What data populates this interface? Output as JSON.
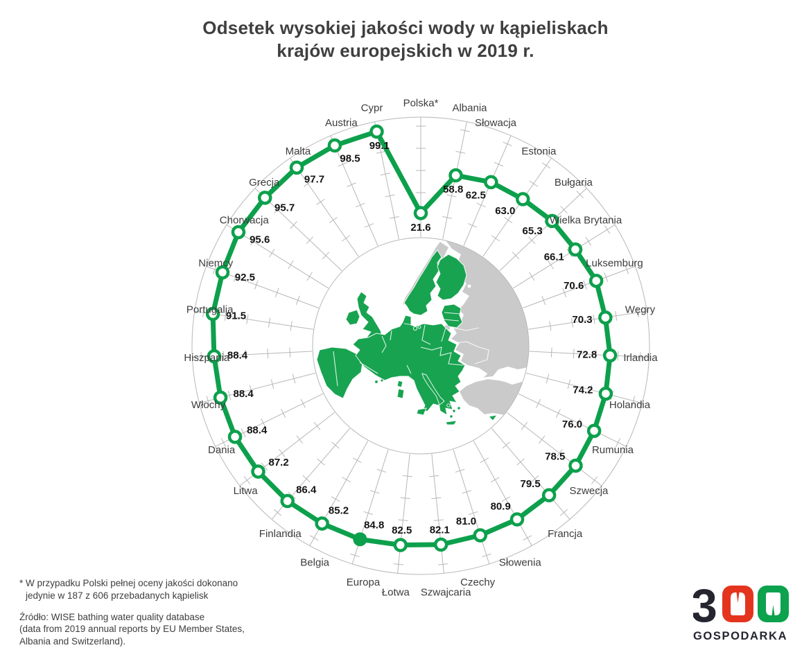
{
  "title": {
    "line1": "Odsetek wysokiej jakości wody w kąpieliskach",
    "line2": "krajów europejskich w 2019 r."
  },
  "chart_data": {
    "type": "radar",
    "title": "Odsetek wysokiej jakości wody w kąpieliskach krajów europejskich w 2019 r.",
    "unit": "percent",
    "value_range": [
      0,
      100
    ],
    "tick_interval": 20,
    "direction": "clockwise",
    "start": "top",
    "grid": true,
    "legend_position": "none",
    "categories": [
      "Polska*",
      "Albania",
      "Słowacja",
      "Estonia",
      "Bułgaria",
      "Wielka Brytania",
      "Luksemburg",
      "Węgry",
      "Irlandia",
      "Holandia",
      "Rumunia",
      "Szwecja",
      "Francja",
      "Słowenia",
      "Czechy",
      "Szwajcaria",
      "Łotwa",
      "Europa",
      "Belgia",
      "Finlandia",
      "Litwa",
      "Dania",
      "Włochy",
      "Hiszpania",
      "Portugalia",
      "Niemcy",
      "Chorwacja",
      "Grecja",
      "Malta",
      "Austria",
      "Cypr"
    ],
    "values": [
      21.6,
      58.8,
      62.5,
      63.0,
      65.3,
      66.1,
      70.6,
      70.3,
      72.8,
      74.2,
      76.0,
      78.5,
      79.5,
      80.9,
      81.0,
      82.1,
      82.5,
      84.8,
      85.2,
      86.4,
      87.2,
      88.4,
      88.4,
      88.4,
      91.5,
      92.5,
      95.6,
      95.7,
      97.7,
      98.5,
      99.1
    ],
    "highlight_category": "Europa"
  },
  "footnote": {
    "line1": "* W przypadku Polski pełnej oceny jakości dokonano",
    "line2": "jedynie w 187 z 606 przebadanych kąpielisk"
  },
  "source": {
    "line1": "Źródło: WISE bathing water quality database",
    "line2": "(data from 2019 annual reports by EU Member States,",
    "line3": "Albania and Switzerland)."
  },
  "logo": {
    "digit": "3",
    "wordmark": "GOSPODARKA"
  },
  "colors": {
    "series_green": "#0DA04C",
    "map_eu_green": "#18A350",
    "map_land_gray": "#CACACA",
    "grid_gray": "#B7B7B7",
    "value_label": "#141414",
    "category_label": "#3C3C3C",
    "title_text": "#3F3F3F",
    "logo_red": "#E5341E",
    "logo_green": "#0CA24E",
    "logo_dark": "#25252F"
  }
}
